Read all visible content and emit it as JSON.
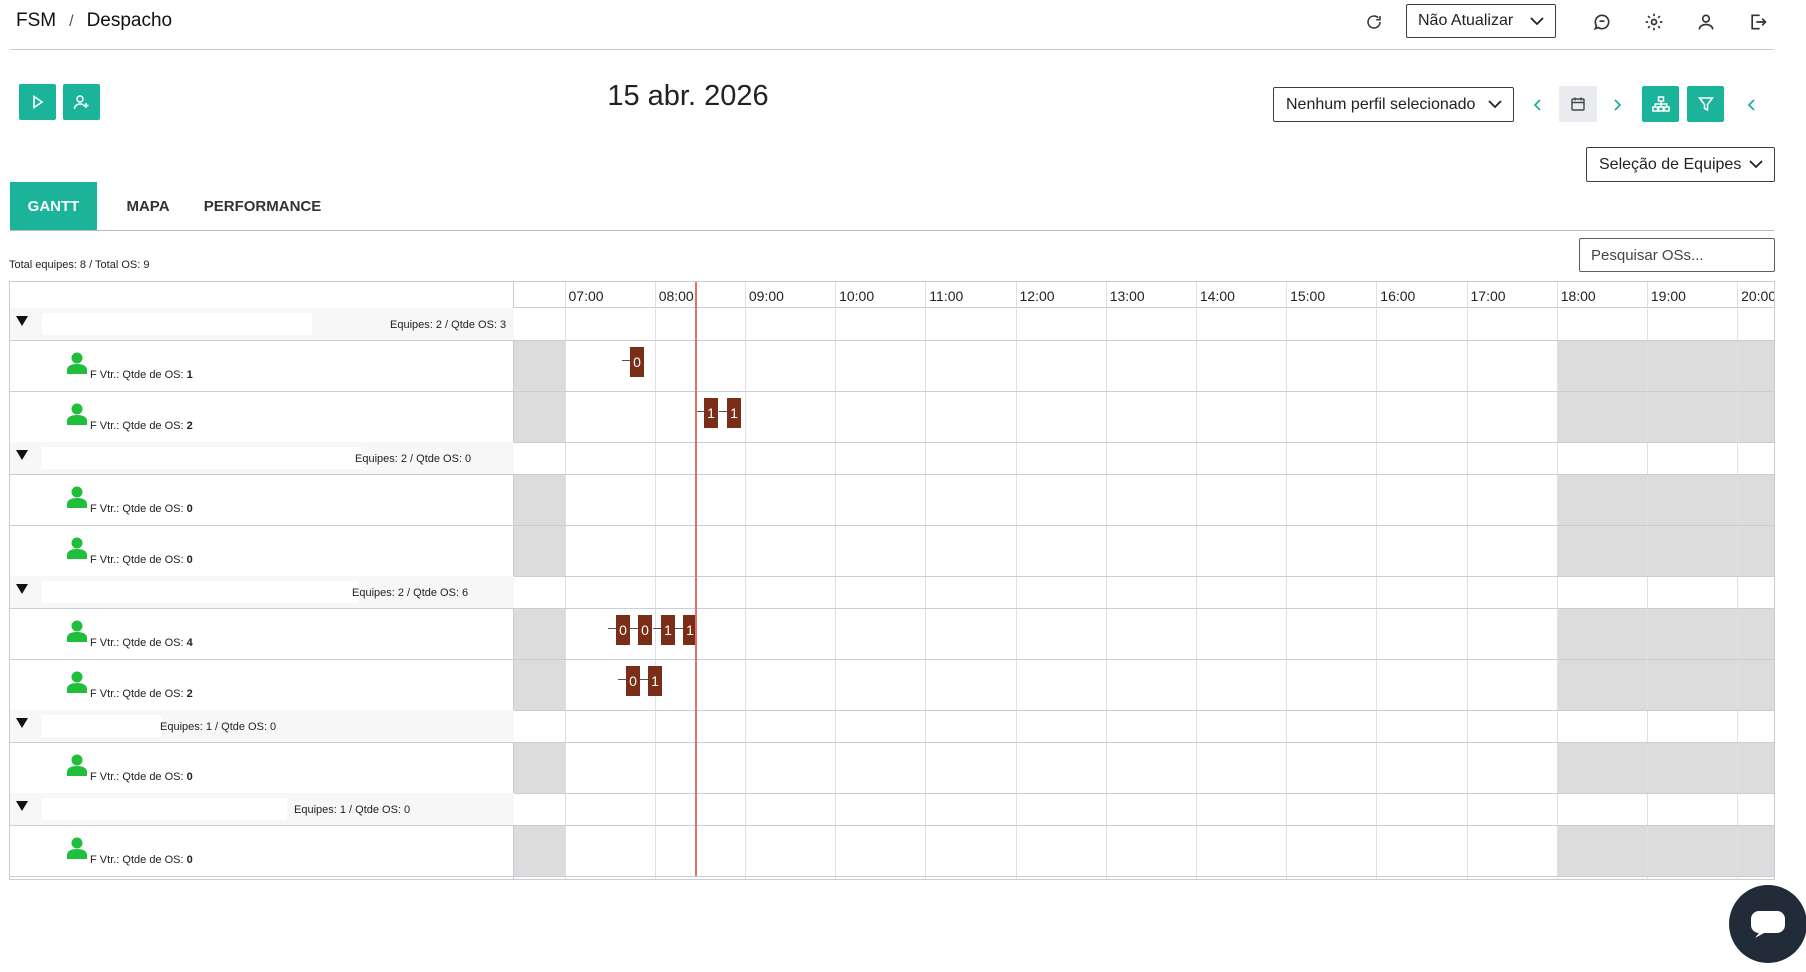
{
  "breadcrumb": {
    "root": "FSM",
    "separator": "/",
    "current": "Despacho"
  },
  "header": {
    "refresh_select_value": "Não Atualizar"
  },
  "date": "15 abr. 2026",
  "profile_select": "Nenhum perfil selecionado",
  "teams_select": "Seleção de Equipes",
  "tabs": [
    "GANTT",
    "MAPA",
    "PERFORMANCE"
  ],
  "totals": "Total equipes: 8 / Total OS: 9",
  "search_placeholder": "Pesquisar OSs...",
  "hours": [
    "07:00",
    "08:00",
    "09:00",
    "10:00",
    "11:00",
    "12:00",
    "13:00",
    "14:00",
    "15:00",
    "16:00",
    "17:00",
    "18:00",
    "19:00",
    "20:00"
  ],
  "groups": [
    {
      "info": "Equipes: 2 / Qtde OS: 3",
      "teams": [
        {
          "prefix": "F",
          "label": "Vtr.: Qtde de OS: ",
          "count": "1"
        },
        {
          "prefix": "F",
          "label": "Vtr.: Qtde de OS: ",
          "count": "2"
        }
      ]
    },
    {
      "info": "Equipes: 2 / Qtde OS: 0",
      "teams": [
        {
          "prefix": "F",
          "label": "Vtr.: Qtde de OS: ",
          "count": "0"
        },
        {
          "prefix": "F",
          "label": "Vtr.: Qtde de OS: ",
          "count": "0"
        }
      ]
    },
    {
      "info": "Equipes: 2 / Qtde OS: 6",
      "teams": [
        {
          "prefix": "F",
          "label": "Vtr.: Qtde de OS: ",
          "count": "4"
        },
        {
          "prefix": "F",
          "label": "Vtr.: Qtde de OS: ",
          "count": "2"
        }
      ]
    },
    {
      "info": "Equipes: 1 / Qtde OS: 0",
      "teams": [
        {
          "prefix": "F",
          "label": "Vtr.: Qtde de OS: ",
          "count": "0"
        }
      ]
    },
    {
      "info": "Equipes: 1 / Qtde OS: 0",
      "teams": [
        {
          "prefix": "F",
          "label": "Vtr.: Qtde de OS: ",
          "count": "0"
        }
      ]
    }
  ],
  "os_bars": [
    {
      "label": "0"
    },
    {
      "label": "1"
    },
    {
      "label": "1"
    },
    {
      "label": "0"
    },
    {
      "label": "0"
    },
    {
      "label": "1"
    },
    {
      "label": "1"
    },
    {
      "label": "0"
    },
    {
      "label": "1"
    }
  ],
  "colors": {
    "accent": "#1bb39a",
    "os_bar": "#7a2e17",
    "now_line": "#e46f68",
    "person": "#1fbf3b"
  }
}
